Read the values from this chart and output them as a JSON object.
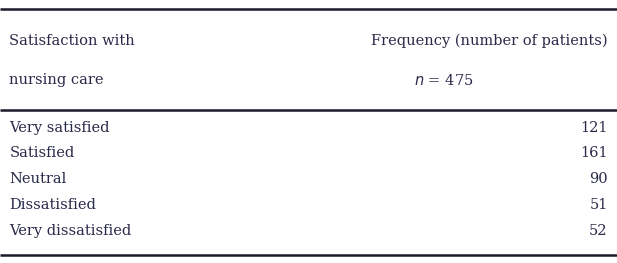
{
  "col1_header_line1": "Satisfaction with",
  "col1_header_line2": "nursing care",
  "col2_header_line1": "Frequency (number of patients)",
  "col2_header_line2_italic": "n",
  "col2_header_line2_rest": " = 475",
  "rows": [
    [
      "Very satisfied",
      "121"
    ],
    [
      "Satisfied",
      "161"
    ],
    [
      "Neutral",
      "90"
    ],
    [
      "Dissatisfied",
      "51"
    ],
    [
      "Very dissatisfied",
      "52"
    ]
  ],
  "background_color": "#ffffff",
  "text_color": "#2a2a4a",
  "line_color": "#1a1a2a",
  "font_size": 10.5,
  "header_font_size": 10.5,
  "fig_width": 6.17,
  "fig_height": 2.63
}
